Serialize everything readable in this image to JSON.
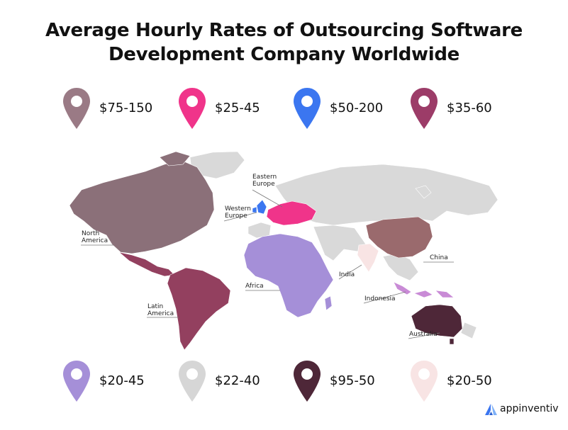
{
  "title_line1": "Average Hourly Rates of Outsourcing Software",
  "title_line2": "Development Company Worldwide",
  "legend": [
    {
      "rate": "$75-150",
      "color": "#9a7a85",
      "icon": "map-pin-icon"
    },
    {
      "rate": "$25-45",
      "color": "#f0348a",
      "icon": "map-pin-icon"
    },
    {
      "rate": "$50-200",
      "color": "#3b76f0",
      "icon": "map-pin-icon"
    },
    {
      "rate": "$35-60",
      "color": "#9c3c68",
      "icon": "map-pin-icon"
    },
    {
      "rate": "$20-45",
      "color": "#a58fd8",
      "icon": "map-pin-icon"
    },
    {
      "rate": "$22-40",
      "color": "#d6d6d6",
      "icon": "map-pin-icon"
    },
    {
      "rate": "$95-50",
      "color": "#4e2738",
      "icon": "map-pin-icon"
    },
    {
      "rate": "$20-50",
      "color": "#f8e4e4",
      "icon": "map-pin-icon"
    }
  ],
  "regions": {
    "north_america": {
      "label": [
        "North",
        "America"
      ],
      "color": "#8b7079"
    },
    "latin_america": {
      "label": [
        "Latin",
        "America"
      ],
      "color": "#93405f"
    },
    "western_europe": {
      "label": [
        "Western",
        "Europe"
      ],
      "color": "#3b76f0"
    },
    "eastern_europe": {
      "label": [
        "Eastern",
        "Europe"
      ],
      "color": "#f0348a"
    },
    "africa": {
      "label": [
        "Africa"
      ],
      "color": "#a58fd8"
    },
    "india": {
      "label": [
        "India"
      ],
      "color": "#f8e4e4"
    },
    "china": {
      "label": [
        "China"
      ],
      "color": "#9a6a6d"
    },
    "indonesia": {
      "label": [
        "Indonesia"
      ],
      "color": "#c98bd6"
    },
    "australia": {
      "label": [
        "Australia"
      ],
      "color": "#4e2738"
    },
    "rest_of_world": {
      "color": "#d9d9d9"
    }
  },
  "brand": {
    "name": "appinventiv",
    "icon": "appinventiv-logo-icon",
    "color": "#3b76f0"
  }
}
